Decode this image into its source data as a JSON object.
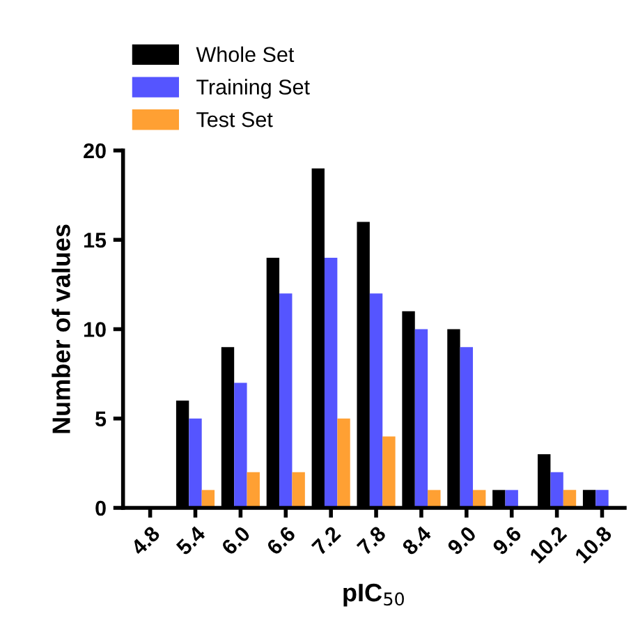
{
  "chart_data": {
    "type": "bar",
    "xlabel": "pIC$_{50}$",
    "ylabel": "Number of values",
    "categories": [
      "4.8",
      "5.4",
      "6.0",
      "6.6",
      "7.2",
      "7.8",
      "8.4",
      "9.0",
      "9.6",
      "10.2",
      "10.8"
    ],
    "series": [
      {
        "name": "Whole Set",
        "color": "#000000",
        "values": [
          0,
          6,
          9,
          14,
          19,
          16,
          11,
          10,
          1,
          3,
          1
        ]
      },
      {
        "name": "Training Set",
        "color": "#5555ff",
        "values": [
          0,
          5,
          7,
          12,
          14,
          12,
          10,
          9,
          1,
          2,
          1
        ]
      },
      {
        "name": "Test Set",
        "color": "#ffa033",
        "values": [
          0,
          1,
          2,
          2,
          5,
          4,
          1,
          1,
          0,
          1,
          0
        ]
      }
    ],
    "ylim": [
      0,
      20
    ],
    "yticks": [
      0,
      5,
      10,
      15,
      20
    ],
    "grid": false,
    "legend": "top left"
  }
}
